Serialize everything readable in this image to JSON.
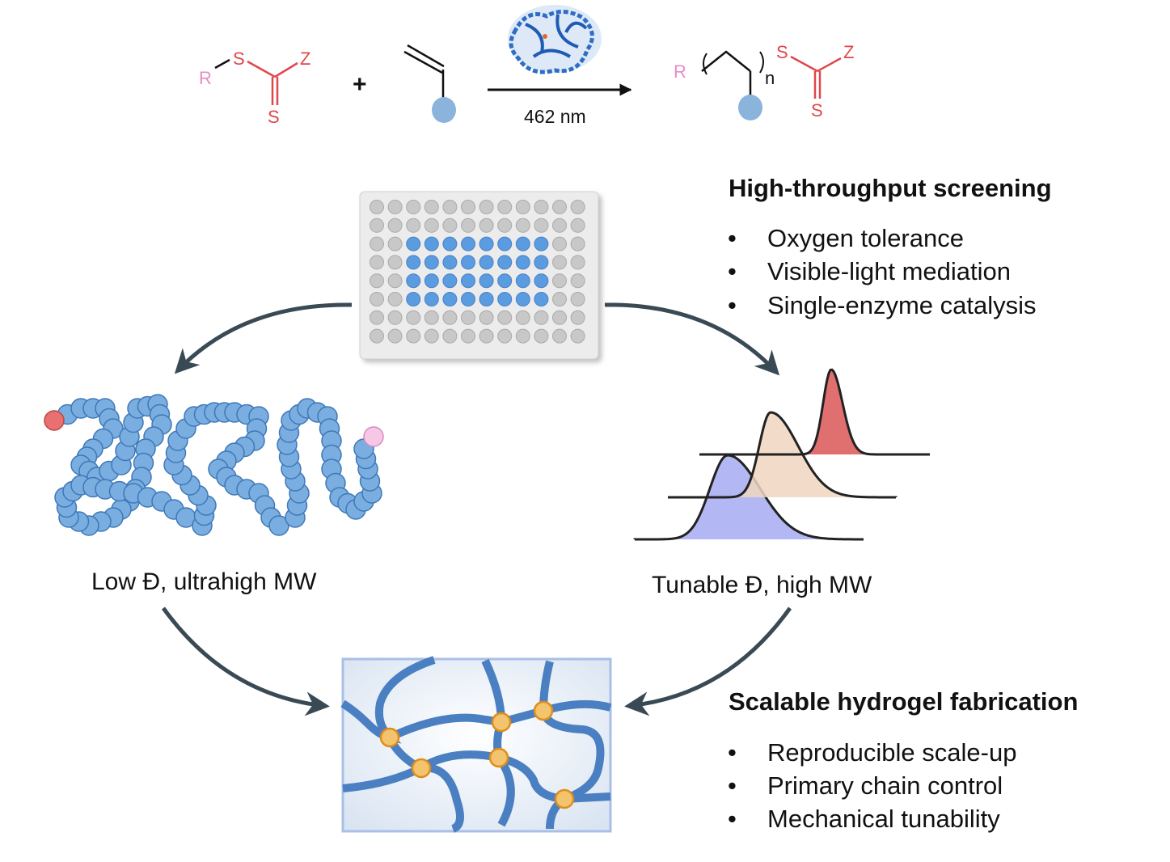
{
  "reaction": {
    "cta": {
      "r": "R",
      "s1": "S",
      "z": "Z",
      "s2": "S"
    },
    "plus": "+",
    "condition": "462 nm",
    "product": {
      "r": "R",
      "n": "n",
      "s1": "S",
      "z": "Z",
      "s2": "S"
    },
    "enzyme_icon": "protein-structure-icon"
  },
  "screening": {
    "title": "High-throughput screening",
    "bullets": [
      "Oxygen tolerance",
      "Visible-light mediation",
      "Single-enzyme catalysis"
    ],
    "plate": {
      "rows": 8,
      "columns": 12,
      "filled_rows": [
        2,
        5
      ],
      "filled_columns": [
        2,
        9
      ]
    }
  },
  "left_label": "Low Đ, ultrahigh MW",
  "right_label": "Tunable Đ, high MW",
  "hydrogel": {
    "title": "Scalable hydrogel fabrication",
    "bullets": [
      "Reproducible scale-up",
      "Primary chain control",
      "Mechanical tunability"
    ]
  },
  "bullet_glyph": "•",
  "colors": {
    "sulfur": "#e0474c",
    "r_group": "#e98bc8",
    "monomer": "#8ab4dc",
    "well_fill": "#5b9be0",
    "bead": "#7aaee0",
    "chain": "#4a7fc1",
    "crosslink": "#f2c46e",
    "peak_red": "#e07070",
    "peak_beige": "#f0d6c0",
    "peak_blue": "#b3b8f5"
  }
}
